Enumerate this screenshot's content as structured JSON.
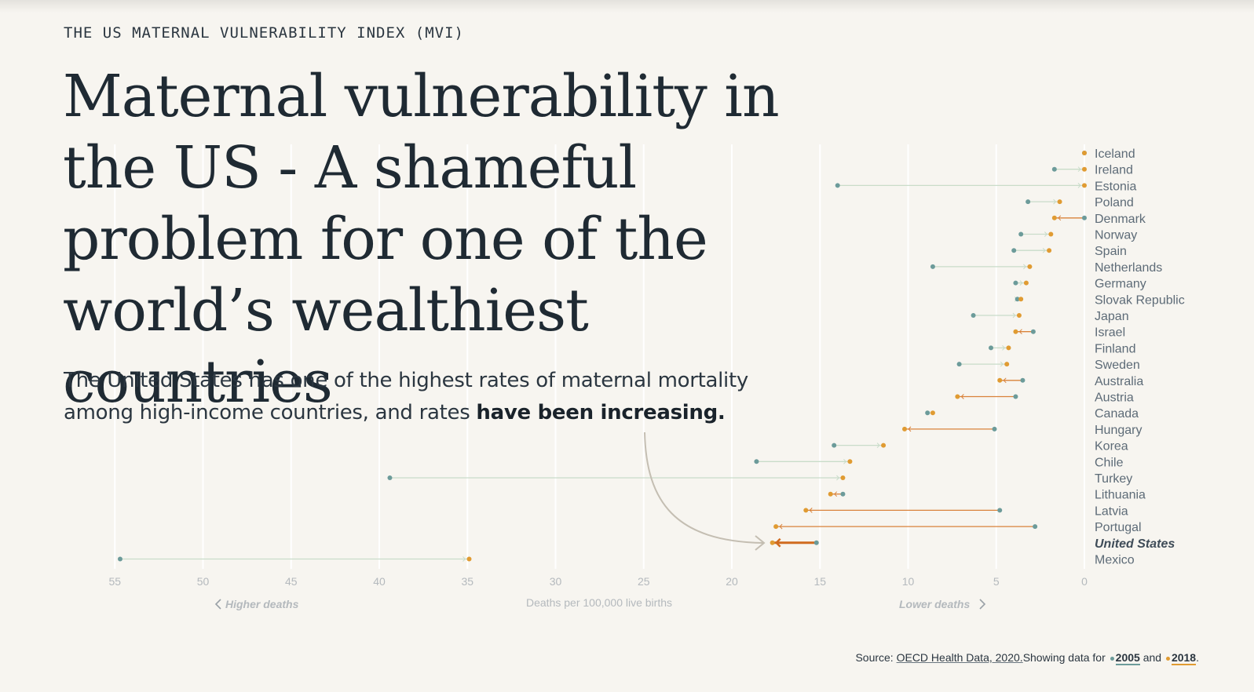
{
  "kicker": "THE US MATERNAL VULNERABILITY INDEX (MVI)",
  "headline": "Maternal vulnerability in the US - A shameful problem for one of the world’s wealthiest countries",
  "subhead": {
    "text": "The United States has one of the highest rates of maternal mortality among high-income countries, and rates ",
    "emphasis": "have been increasing."
  },
  "source": {
    "prefix": "Source: ",
    "link": "OECD Health Data, 2020.",
    "middle": "Showing data for ",
    "year_a": "2005",
    "and": " and ",
    "year_b": "2018",
    "end": "."
  },
  "colors": {
    "background": "#f7f5f0",
    "year_2005": "#6c9b9a",
    "year_2018": "#e09b32",
    "decrease_line": "#c9dcc9",
    "increase_line": "#d9823a",
    "us_line": "#d06b1f",
    "annotation_arrow": "#c4beb2",
    "grid": "#ffffff",
    "tick_text": "#b4b9bd",
    "country_text": "#5d6b77"
  },
  "chart_data": {
    "type": "dumbbell",
    "xlabel": "Deaths per 100,000 live births",
    "direction_left": "Higher deaths",
    "direction_right": "Lower deaths",
    "x_ticks": [
      55,
      50,
      45,
      40,
      35,
      30,
      25,
      20,
      15,
      10,
      5,
      0
    ],
    "xlim": [
      55,
      0
    ],
    "series": [
      {
        "name": "2005"
      },
      {
        "name": "2018"
      }
    ],
    "highlight": "United States",
    "countries": [
      {
        "name": "Iceland",
        "v2005": 0,
        "v2018": 0
      },
      {
        "name": "Ireland",
        "v2005": 1.7,
        "v2018": 0
      },
      {
        "name": "Estonia",
        "v2005": 14.0,
        "v2018": 0
      },
      {
        "name": "Poland",
        "v2005": 3.2,
        "v2018": 1.4
      },
      {
        "name": "Denmark",
        "v2005": 0,
        "v2018": 1.7
      },
      {
        "name": "Norway",
        "v2005": 3.6,
        "v2018": 1.9
      },
      {
        "name": "Spain",
        "v2005": 4.0,
        "v2018": 2.0
      },
      {
        "name": "Netherlands",
        "v2005": 8.6,
        "v2018": 3.1
      },
      {
        "name": "Germany",
        "v2005": 3.9,
        "v2018": 3.3
      },
      {
        "name": "Slovak Republic",
        "v2005": 3.8,
        "v2018": 3.6
      },
      {
        "name": "Japan",
        "v2005": 6.3,
        "v2018": 3.7
      },
      {
        "name": "Israel",
        "v2005": 2.9,
        "v2018": 3.9
      },
      {
        "name": "Finland",
        "v2005": 5.3,
        "v2018": 4.3
      },
      {
        "name": "Sweden",
        "v2005": 7.1,
        "v2018": 4.4
      },
      {
        "name": "Australia",
        "v2005": 3.5,
        "v2018": 4.8
      },
      {
        "name": "Austria",
        "v2005": 3.9,
        "v2018": 7.2
      },
      {
        "name": "Canada",
        "v2005": 8.9,
        "v2018": 8.6
      },
      {
        "name": "Hungary",
        "v2005": 5.1,
        "v2018": 10.2
      },
      {
        "name": "Korea",
        "v2005": 14.2,
        "v2018": 11.4
      },
      {
        "name": "Chile",
        "v2005": 18.6,
        "v2018": 13.3
      },
      {
        "name": "Turkey",
        "v2005": 39.4,
        "v2018": 13.7
      },
      {
        "name": "Lithuania",
        "v2005": 13.7,
        "v2018": 14.4
      },
      {
        "name": "Latvia",
        "v2005": 4.8,
        "v2018": 15.8
      },
      {
        "name": "Portugal",
        "v2005": 2.8,
        "v2018": 17.5
      },
      {
        "name": "United States",
        "v2005": 15.2,
        "v2018": 17.7
      },
      {
        "name": "Mexico",
        "v2005": 54.7,
        "v2018": 34.9
      }
    ]
  }
}
